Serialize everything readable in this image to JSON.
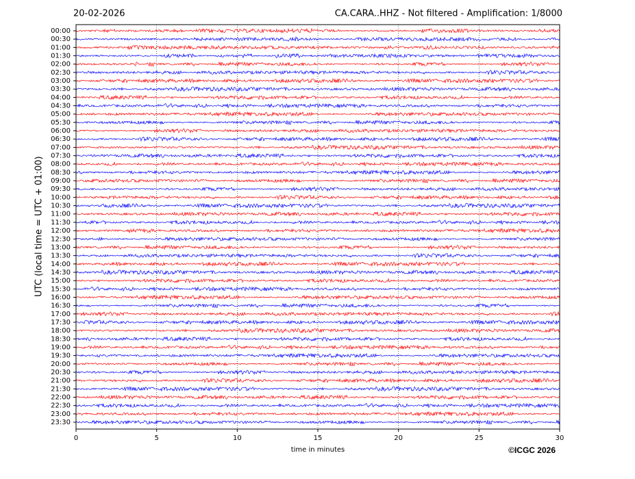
{
  "chart_data": {
    "type": "helicorder",
    "date": "20-02-2026",
    "title": "CA.CARA..HHZ - Not filtered - Amplification: 1/8000",
    "y_label": "UTC (local time = UTC + 01:00)",
    "x_label": "time in minutes",
    "copyright": "©ICGC 2026",
    "categories": [
      "00:00",
      "00:30",
      "01:00",
      "01:30",
      "02:00",
      "02:30",
      "03:00",
      "03:30",
      "04:00",
      "04:30",
      "05:00",
      "05:30",
      "06:00",
      "06:30",
      "07:00",
      "07:30",
      "08:00",
      "08:30",
      "09:00",
      "09:30",
      "10:00",
      "10:30",
      "11:00",
      "11:30",
      "12:00",
      "12:30",
      "13:00",
      "13:30",
      "14:00",
      "14:30",
      "15:00",
      "15:30",
      "16:00",
      "16:30",
      "17:00",
      "17:30",
      "18:00",
      "18:30",
      "19:00",
      "19:30",
      "20:00",
      "20:30",
      "21:00",
      "21:30",
      "22:00",
      "22:30",
      "23:00",
      "23:30"
    ],
    "trace_colors": [
      "#ff0000",
      "#0000ff"
    ],
    "xlim": [
      0,
      30
    ],
    "xticks": [
      0,
      5,
      10,
      15,
      20,
      25,
      30
    ],
    "grid": true
  }
}
